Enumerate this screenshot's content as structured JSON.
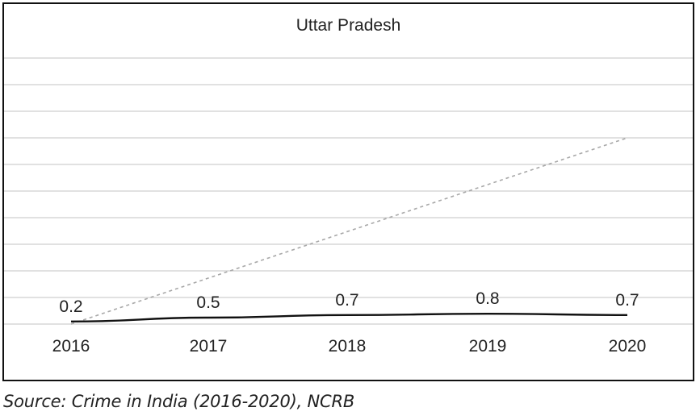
{
  "chart_data": {
    "type": "line",
    "title": "Uttar Pradesh",
    "xlabel": "",
    "ylabel": "",
    "categories": [
      "2016",
      "2017",
      "2018",
      "2019",
      "2020"
    ],
    "series": [
      {
        "values": [
          0.2,
          0.5,
          0.7,
          0.8,
          0.7
        ],
        "style": "solid",
        "color": "#111111",
        "labeled": true
      }
    ],
    "trendline": {
      "style": "dotted",
      "color": "#a8a8a8",
      "from": [
        2016,
        0.0
      ],
      "to": [
        2020,
        7.0
      ]
    },
    "ylim": [
      0,
      10
    ],
    "grid": "horizontal",
    "legend": "none"
  },
  "source": "Source: Crime in India (2016-2020), NCRB"
}
